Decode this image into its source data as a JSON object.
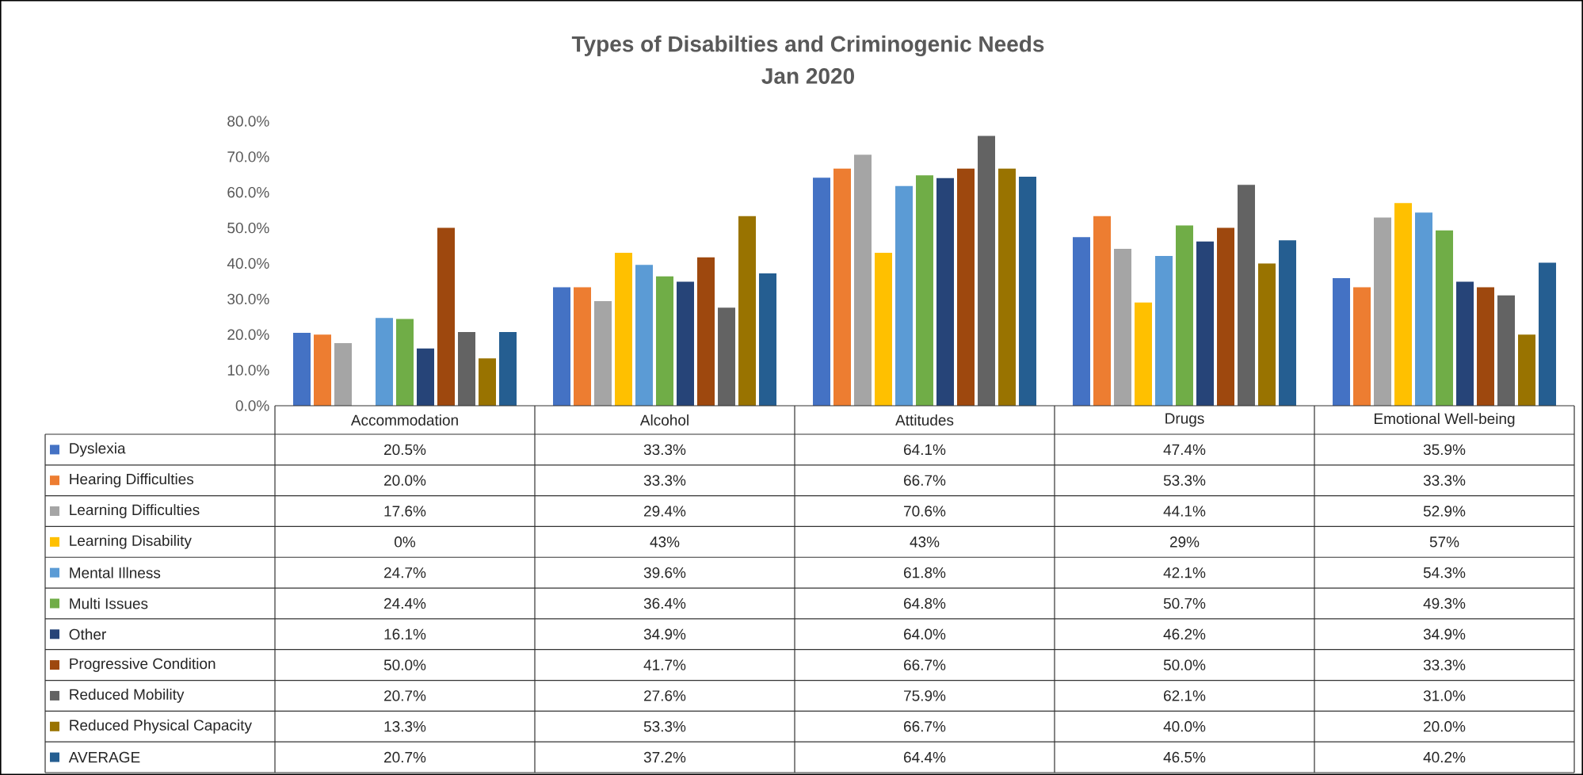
{
  "chart_data": {
    "type": "bar",
    "title": "Types of Disabilties and Criminogenic Needs",
    "subtitle": "Jan 2020",
    "categories": [
      "Accommodation",
      "Alcohol",
      "Attitudes",
      "Drugs",
      "Emotional Well-being"
    ],
    "ylim": [
      0,
      80
    ],
    "yticks": [
      {
        "value": 0,
        "label": "0.0%"
      },
      {
        "value": 10,
        "label": "10.0%"
      },
      {
        "value": 20,
        "label": "20.0%"
      },
      {
        "value": 30,
        "label": "30.0%"
      },
      {
        "value": 40,
        "label": "40.0%"
      },
      {
        "value": 50,
        "label": "50.0%"
      },
      {
        "value": 60,
        "label": "60.0%"
      },
      {
        "value": 70,
        "label": "70.0%"
      },
      {
        "value": 80,
        "label": "80.0%"
      }
    ],
    "legend": "bottom",
    "series": [
      {
        "name": "Dyslexia",
        "color": "#4472c4",
        "values": [
          20.5,
          33.3,
          64.1,
          47.4,
          35.9
        ],
        "value_labels": [
          "20.5%",
          "33.3%",
          "64.1%",
          "47.4%",
          "35.9%"
        ]
      },
      {
        "name": "Hearing Difficulties",
        "color": "#ed7d31",
        "values": [
          20.0,
          33.3,
          66.7,
          53.3,
          33.3
        ],
        "value_labels": [
          "20.0%",
          "33.3%",
          "66.7%",
          "53.3%",
          "33.3%"
        ]
      },
      {
        "name": "Learning Difficulties",
        "color": "#a5a5a5",
        "values": [
          17.6,
          29.4,
          70.6,
          44.1,
          52.9
        ],
        "value_labels": [
          "17.6%",
          "29.4%",
          "70.6%",
          "44.1%",
          "52.9%"
        ]
      },
      {
        "name": "Learning Disability",
        "color": "#ffc000",
        "values": [
          0,
          43,
          43,
          29,
          57
        ],
        "value_labels": [
          "0%",
          "43%",
          "43%",
          "29%",
          "57%"
        ]
      },
      {
        "name": "Mental Illness",
        "color": "#5b9bd5",
        "values": [
          24.7,
          39.6,
          61.8,
          42.1,
          54.3
        ],
        "value_labels": [
          "24.7%",
          "39.6%",
          "61.8%",
          "42.1%",
          "54.3%"
        ]
      },
      {
        "name": "Multi Issues",
        "color": "#70ad47",
        "values": [
          24.4,
          36.4,
          64.8,
          50.7,
          49.3
        ],
        "value_labels": [
          "24.4%",
          "36.4%",
          "64.8%",
          "50.7%",
          "49.3%"
        ]
      },
      {
        "name": "Other",
        "color": "#264478",
        "values": [
          16.1,
          34.9,
          64.0,
          46.2,
          34.9
        ],
        "value_labels": [
          "16.1%",
          "34.9%",
          "64.0%",
          "46.2%",
          "34.9%"
        ]
      },
      {
        "name": "Progressive Condition",
        "color": "#9e480e",
        "values": [
          50.0,
          41.7,
          66.7,
          50.0,
          33.3
        ],
        "value_labels": [
          "50.0%",
          "41.7%",
          "66.7%",
          "50.0%",
          "33.3%"
        ]
      },
      {
        "name": "Reduced Mobility",
        "color": "#636363",
        "values": [
          20.7,
          27.6,
          75.9,
          62.1,
          31.0
        ],
        "value_labels": [
          "20.7%",
          "27.6%",
          "75.9%",
          "62.1%",
          "31.0%"
        ]
      },
      {
        "name": "Reduced Physical Capacity",
        "color": "#997300",
        "values": [
          13.3,
          53.3,
          66.7,
          40.0,
          20.0
        ],
        "value_labels": [
          "13.3%",
          "53.3%",
          "66.7%",
          "40.0%",
          "20.0%"
        ]
      },
      {
        "name": "AVERAGE",
        "color": "#255e91",
        "values": [
          20.7,
          37.2,
          64.4,
          46.5,
          40.2
        ],
        "value_labels": [
          "20.7%",
          "37.2%",
          "64.4%",
          "46.5%",
          "40.2%"
        ]
      }
    ]
  }
}
